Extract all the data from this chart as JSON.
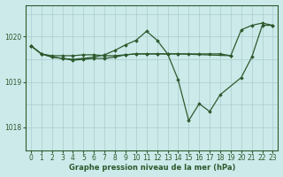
{
  "title": "Graphe pression niveau de la mer (hPa)",
  "bg_color": "#cceaea",
  "grid_color": "#aacccc",
  "line_color": "#2d5a2d",
  "marker_color": "#2d5a2d",
  "xlim": [
    -0.5,
    23.5
  ],
  "ylim": [
    1017.5,
    1020.7
  ],
  "yticks": [
    1018,
    1019,
    1020
  ],
  "xticks": [
    0,
    1,
    2,
    3,
    4,
    5,
    6,
    7,
    8,
    9,
    10,
    11,
    12,
    13,
    14,
    15,
    16,
    17,
    18,
    19,
    20,
    21,
    22,
    23
  ],
  "series": [
    {
      "x": [
        0,
        1,
        2,
        3,
        4,
        5,
        6,
        7,
        8,
        9,
        10,
        11,
        12,
        13,
        14,
        19,
        20,
        21,
        22,
        23
      ],
      "y": [
        1019.8,
        1019.62,
        1019.58,
        1019.58,
        1019.58,
        1019.6,
        1019.6,
        1019.58,
        1019.58,
        1019.6,
        1019.62,
        1019.62,
        1019.62,
        1019.62,
        1019.62,
        1019.58,
        1020.15,
        1020.25,
        1020.3,
        1020.25
      ]
    },
    {
      "x": [
        0,
        1,
        2,
        3,
        4,
        5,
        6,
        7,
        8,
        9,
        10,
        11,
        12,
        13,
        14,
        15,
        16,
        17,
        18,
        20,
        21,
        22,
        23
      ],
      "y": [
        1019.8,
        1019.62,
        1019.55,
        1019.52,
        1019.5,
        1019.52,
        1019.55,
        1019.6,
        1019.7,
        1019.82,
        1019.92,
        1020.12,
        1019.92,
        1019.62,
        1019.05,
        1018.15,
        1018.52,
        1018.35,
        1018.72,
        1019.1,
        1019.55,
        1020.25,
        1020.25
      ]
    },
    {
      "x": [
        0,
        1,
        2,
        3,
        4,
        5,
        6,
        7,
        8,
        9,
        10,
        11,
        12,
        13,
        14,
        15,
        16,
        17,
        18,
        19
      ],
      "y": [
        1019.8,
        1019.62,
        1019.55,
        1019.52,
        1019.48,
        1019.5,
        1019.52,
        1019.52,
        1019.55,
        1019.6,
        1019.62,
        1019.62,
        1019.62,
        1019.62,
        1019.62,
        1019.62,
        1019.62,
        1019.62,
        1019.62,
        1019.58
      ]
    }
  ]
}
